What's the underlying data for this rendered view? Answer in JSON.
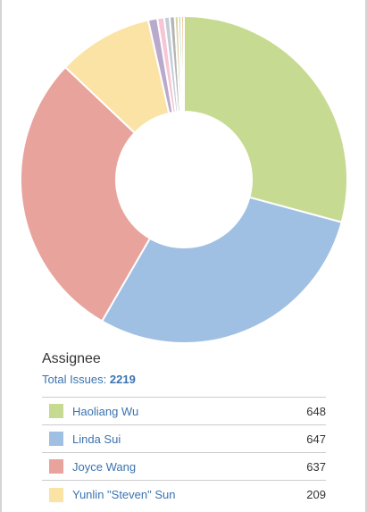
{
  "chart_data": {
    "type": "pie",
    "style": "donut",
    "title": "Assignee",
    "total_label": "Total Issues:",
    "total": "2219",
    "slices": [
      {
        "name": "Haoliang Wu",
        "value": 648,
        "color": "#c7da92"
      },
      {
        "name": "Linda Sui",
        "value": 647,
        "color": "#9fc0e2"
      },
      {
        "name": "Joyce Wang",
        "value": 637,
        "color": "#e8a39c"
      },
      {
        "name": "Yunlin \"Steven\" Sun",
        "value": 209,
        "color": "#fae3a5"
      },
      {
        "value": 20,
        "color": "#b9a9cc"
      },
      {
        "value": 15,
        "color": "#f6c6d5"
      },
      {
        "value": 12,
        "color": "#c3cdd8"
      },
      {
        "value": 11,
        "color": "#b5b5b5"
      },
      {
        "value": 8,
        "color": "#ddd3a1"
      },
      {
        "value": 6,
        "color": "#a9d3c2"
      },
      {
        "value": 6,
        "color": "#f7c79a"
      }
    ]
  }
}
